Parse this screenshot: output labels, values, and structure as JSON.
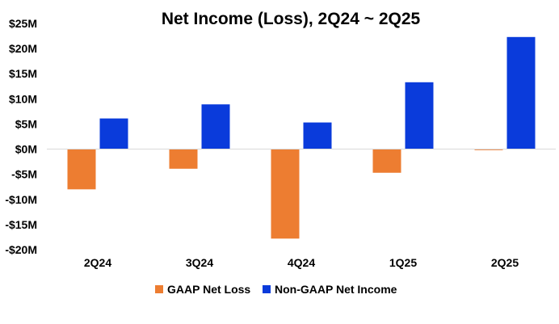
{
  "chart_data": {
    "type": "bar",
    "title": "Net Income (Loss), 2Q24 ~ 2Q25",
    "xlabel": "",
    "ylabel": "",
    "categories": [
      "2Q24",
      "3Q24",
      "4Q24",
      "1Q25",
      "2Q25"
    ],
    "series": [
      {
        "name": "GAAP Net Loss",
        "color": "#ED7D31",
        "values": [
          -8.0,
          -3.9,
          -17.8,
          -4.7,
          -0.2
        ]
      },
      {
        "name": "Non-GAAP Net Income",
        "color": "#0A3BDB",
        "values": [
          6.1,
          8.9,
          5.3,
          13.3,
          22.3
        ]
      }
    ],
    "ylim": [
      -20,
      25
    ],
    "yticks": [
      25,
      20,
      15,
      10,
      5,
      0,
      -5,
      -10,
      -15,
      -20
    ],
    "ytick_labels": [
      "$25M",
      "$20M",
      "$15M",
      "$10M",
      "$5M",
      "$0M",
      "-$5M",
      "-$10M",
      "-$15M",
      "-$20M"
    ],
    "grid": false,
    "legend_position": "bottom"
  }
}
